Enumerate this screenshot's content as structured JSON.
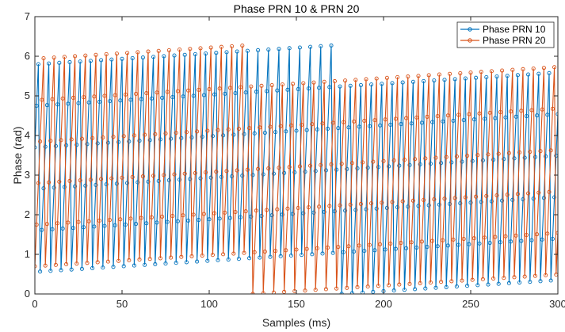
{
  "chart_data": {
    "type": "line",
    "title": "Phase PRN 10 & PRN 20",
    "xlabel": "Samples (ms)",
    "ylabel": "Phase (rad)",
    "xlim": [
      0,
      300
    ],
    "ylim": [
      0,
      7
    ],
    "xticks": [
      0,
      50,
      100,
      150,
      200,
      250,
      300
    ],
    "yticks": [
      0,
      1,
      2,
      3,
      4,
      5,
      6,
      7
    ],
    "grid": false,
    "legend_position": "top-right",
    "marker": "circle",
    "sawtooth_period": 6,
    "series": [
      {
        "name": "Phase PRN 10",
        "color": "#0072BD",
        "first_phase": 3.7,
        "phase_step": 1.05,
        "wrap": 6.2832,
        "x_start": 0,
        "x_end": 300
      },
      {
        "name": "Phase PRN 20",
        "color": "#D95319",
        "first_phase": 0.7,
        "phase_step": 1.05,
        "wrap": 6.2832,
        "x_start": 0,
        "x_end": 300
      }
    ]
  }
}
